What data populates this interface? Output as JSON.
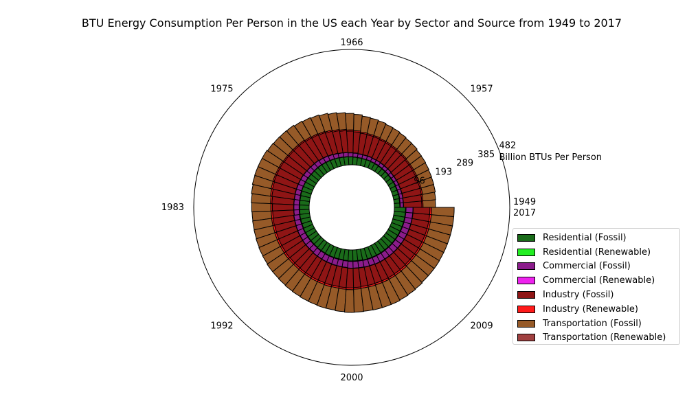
{
  "chart_data": {
    "type": "polar-stacked-bar",
    "title": "BTU Energy Consumption Per Person in the US each Year by Sector and Source from 1949 to 2017",
    "radial_label": "Billion BTUs Per Person",
    "radial_ticks": [
      "96",
      "193",
      "289",
      "385",
      "482"
    ],
    "radial_max": 482,
    "angle_labels": [
      "1949",
      "2017",
      "1957",
      "1966",
      "1975",
      "1983",
      "1992",
      "2000",
      "2009"
    ],
    "years": [
      1949,
      1950,
      1951,
      1952,
      1953,
      1954,
      1955,
      1956,
      1957,
      1958,
      1959,
      1960,
      1961,
      1962,
      1963,
      1964,
      1965,
      1966,
      1967,
      1968,
      1969,
      1970,
      1971,
      1972,
      1973,
      1974,
      1975,
      1976,
      1977,
      1978,
      1979,
      1980,
      1981,
      1982,
      1983,
      1984,
      1985,
      1986,
      1987,
      1988,
      1989,
      1990,
      1991,
      1992,
      1993,
      1994,
      1995,
      1996,
      1997,
      1998,
      1999,
      2000,
      2001,
      2002,
      2003,
      2004,
      2005,
      2006,
      2007,
      2008,
      2009,
      2010,
      2011,
      2012,
      2013,
      2014,
      2015,
      2016,
      2017
    ],
    "series": [
      {
        "name": "Residential (Fossil)",
        "color": "#1a6b1a",
        "values": [
          23,
          23,
          24,
          24,
          24,
          25,
          25,
          25,
          26,
          26,
          27,
          28,
          29,
          30,
          30,
          31,
          32,
          33,
          34,
          35,
          36,
          37,
          38,
          39,
          40,
          40,
          40,
          41,
          42,
          42,
          42,
          41,
          40,
          40,
          40,
          40,
          41,
          41,
          41,
          42,
          42,
          42,
          42,
          42,
          43,
          43,
          44,
          44,
          44,
          44,
          45,
          46,
          46,
          46,
          47,
          47,
          47,
          47,
          47,
          47,
          47,
          47,
          47,
          47,
          47,
          47,
          47,
          47,
          47
        ]
      },
      {
        "name": "Residential (Renewable)",
        "color": "#22ee22",
        "values": [
          2,
          2,
          2,
          2,
          2,
          2,
          2,
          2,
          2,
          2,
          2,
          2,
          1,
          1,
          1,
          1,
          1,
          1,
          1,
          1,
          1,
          1,
          1,
          1,
          1,
          1,
          1,
          1,
          1,
          1,
          1,
          2,
          2,
          2,
          2,
          2,
          2,
          2,
          2,
          2,
          2,
          2,
          2,
          2,
          2,
          2,
          2,
          2,
          2,
          2,
          2,
          2,
          2,
          2,
          2,
          2,
          2,
          2,
          2,
          2,
          2,
          2,
          2,
          2,
          2,
          2,
          2,
          2,
          2
        ]
      },
      {
        "name": "Commercial (Fossil)",
        "color": "#8b1c8b",
        "values": [
          13,
          13,
          13,
          13,
          13,
          13,
          13,
          13,
          14,
          14,
          14,
          14,
          14,
          15,
          15,
          15,
          16,
          16,
          17,
          17,
          18,
          19,
          20,
          20,
          21,
          21,
          22,
          22,
          22,
          22,
          22,
          22,
          22,
          22,
          22,
          22,
          23,
          23,
          24,
          24,
          24,
          25,
          25,
          25,
          26,
          26,
          26,
          26,
          27,
          27,
          27,
          28,
          28,
          28,
          28,
          28,
          29,
          29,
          29,
          29,
          29,
          29,
          29,
          29,
          29,
          29,
          29,
          29,
          29
        ]
      },
      {
        "name": "Commercial (Renewable)",
        "color": "#ee22ee",
        "values": [
          1,
          1,
          1,
          1,
          1,
          1,
          1,
          1,
          1,
          1,
          1,
          1,
          1,
          1,
          1,
          1,
          1,
          1,
          1,
          1,
          1,
          1,
          1,
          1,
          1,
          1,
          1,
          1,
          1,
          1,
          1,
          1,
          1,
          1,
          1,
          1,
          1,
          1,
          1,
          1,
          1,
          1,
          1,
          1,
          1,
          1,
          1,
          1,
          1,
          1,
          1,
          1,
          1,
          1,
          1,
          1,
          1,
          1,
          1,
          1,
          1,
          1,
          1,
          1,
          1,
          1,
          1,
          1,
          1
        ]
      },
      {
        "name": "Industry (Fossil)",
        "color": "#8f1515",
        "values": [
          76,
          77,
          78,
          78,
          78,
          78,
          79,
          79,
          80,
          80,
          81,
          82,
          83,
          84,
          85,
          86,
          88,
          90,
          91,
          93,
          95,
          96,
          96,
          97,
          98,
          98,
          97,
          97,
          98,
          98,
          98,
          96,
          94,
          91,
          89,
          88,
          87,
          86,
          86,
          86,
          86,
          86,
          85,
          85,
          84,
          84,
          84,
          84,
          84,
          83,
          83,
          82,
          80,
          78,
          77,
          76,
          75,
          74,
          73,
          72,
          70,
          70,
          70,
          70,
          70,
          70,
          70,
          70,
          70
        ]
      },
      {
        "name": "Industry (Renewable)",
        "color": "#ff1a1a",
        "values": [
          5,
          5,
          5,
          5,
          5,
          5,
          5,
          5,
          5,
          5,
          5,
          5,
          5,
          5,
          5,
          5,
          5,
          5,
          5,
          5,
          5,
          5,
          5,
          5,
          5,
          5,
          5,
          5,
          5,
          5,
          5,
          6,
          6,
          6,
          6,
          6,
          6,
          7,
          7,
          7,
          7,
          7,
          7,
          7,
          7,
          7,
          7,
          7,
          7,
          7,
          7,
          7,
          7,
          7,
          7,
          7,
          7,
          7,
          7,
          7,
          7,
          7,
          7,
          7,
          7,
          7,
          7,
          7,
          7
        ]
      },
      {
        "name": "Transportation (Fossil)",
        "color": "#965a28",
        "values": [
          52,
          53,
          54,
          55,
          56,
          57,
          58,
          59,
          60,
          61,
          62,
          63,
          64,
          65,
          66,
          67,
          68,
          69,
          70,
          71,
          72,
          73,
          74,
          75,
          76,
          77,
          78,
          79,
          80,
          80,
          80,
          80,
          80,
          80,
          80,
          80,
          80,
          81,
          82,
          83,
          84,
          85,
          86,
          87,
          88,
          89,
          90,
          91,
          92,
          93,
          94,
          95,
          96,
          97,
          98,
          99,
          99,
          98,
          97,
          96,
          95,
          95,
          95,
          94,
          94,
          94,
          94,
          94,
          94
        ]
      },
      {
        "name": "Transportation (Renewable)",
        "color": "#a04040",
        "values": [
          0,
          0,
          0,
          0,
          0,
          0,
          0,
          0,
          0,
          0,
          0,
          0,
          0,
          0,
          0,
          0,
          0,
          0,
          0,
          0,
          0,
          0,
          0,
          0,
          0,
          0,
          0,
          0,
          0,
          0,
          0,
          0,
          0,
          0,
          0,
          0,
          0,
          0,
          0,
          0,
          0,
          0,
          0,
          0,
          0,
          0,
          0,
          0,
          0,
          0,
          0,
          0,
          0,
          0,
          0,
          0,
          0,
          0,
          0,
          0,
          0,
          0,
          0,
          0,
          0,
          0,
          0,
          0,
          0
        ]
      }
    ]
  }
}
